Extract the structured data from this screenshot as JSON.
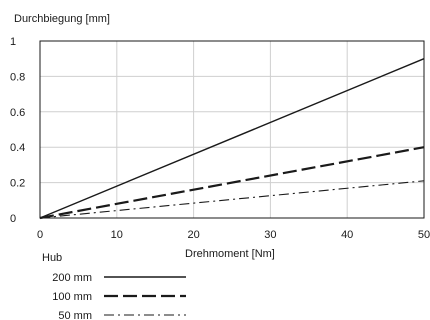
{
  "chart_data": {
    "type": "line",
    "title": "",
    "ylabel": "Durchbiegung [mm]",
    "xlabel": "Drehmoment [Nm]",
    "xlim": [
      0,
      50
    ],
    "ylim": [
      0,
      1
    ],
    "x_ticks": [
      0,
      10,
      20,
      30,
      40,
      50
    ],
    "x_tick_labels": [
      "0",
      "10",
      "20",
      "30",
      "40",
      "50"
    ],
    "y_ticks": [
      0,
      0.2,
      0.4,
      0.6,
      0.8,
      1
    ],
    "y_tick_labels": [
      "0",
      "0.2",
      "0.4",
      "0.6",
      "0.8",
      "1"
    ],
    "grid": true,
    "legend": {
      "title": "Hub",
      "placement": "bottom-left"
    },
    "series": [
      {
        "name": "200 mm",
        "style": "solid",
        "color": "#1a1a1a",
        "x": [
          0,
          50
        ],
        "y": [
          0,
          0.9
        ]
      },
      {
        "name": "100 mm",
        "style": "dashed",
        "color": "#1a1a1a",
        "x": [
          0,
          50
        ],
        "y": [
          0,
          0.4
        ]
      },
      {
        "name": "50 mm",
        "style": "dash-dot",
        "color": "#1a1a1a",
        "x": [
          0,
          50
        ],
        "y": [
          0,
          0.21
        ]
      }
    ]
  }
}
